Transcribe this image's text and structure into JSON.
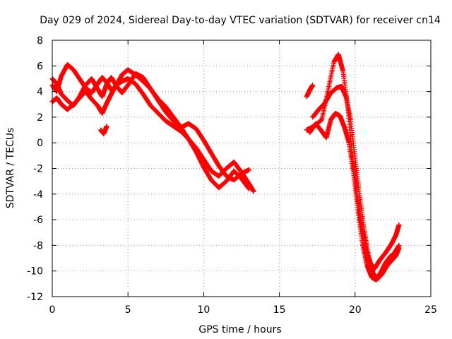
{
  "chart_data": {
    "type": "scatter",
    "title": "Day 029 of 2024, Sidereal Day-to-day VTEC variation (SDTVAR) for receiver cn14",
    "xlabel": "GPS time / hours",
    "ylabel": "SDTVAR / TECUs",
    "xlim": [
      0,
      25
    ],
    "ylim": [
      -12,
      8
    ],
    "xticks": [
      0,
      5,
      10,
      15,
      20,
      25
    ],
    "yticks": [
      -12,
      -10,
      -8,
      -6,
      -4,
      -2,
      0,
      2,
      4,
      6,
      8
    ],
    "grid": true,
    "marker": "+",
    "series": [
      {
        "name": "SDTVAR",
        "color": "#ff0000",
        "tracks": [
          {
            "x": [
              0,
              0.3,
              0.6,
              1.0,
              1.4,
              1.8,
              2.2,
              2.6,
              3.0,
              3.3,
              3.6,
              3.9,
              4.2,
              4.6,
              5.0,
              5.5,
              6.0,
              6.5,
              7.0,
              7.5,
              8.0,
              8.5,
              9.0,
              9.5,
              10.0,
              10.5,
              11.0,
              11.5,
              12.0,
              12.5,
              13.0,
              13.3
            ],
            "y": [
              3.2,
              3.5,
              3.0,
              2.6,
              3.0,
              3.5,
              4.0,
              3.4,
              2.9,
              2.3,
              3.1,
              3.8,
              4.5,
              4.8,
              5.0,
              4.6,
              3.8,
              2.9,
              2.3,
              1.7,
              1.3,
              0.9,
              0.3,
              -0.4,
              -1.3,
              -2.2,
              -2.6,
              -2.0,
              -1.5,
              -2.3,
              -3.2,
              -3.8
            ]
          },
          {
            "x": [
              0,
              0.3,
              0.6,
              1.0,
              1.4,
              1.8,
              2.2,
              2.6,
              3.0,
              3.3,
              3.6,
              3.9,
              4.2,
              4.6,
              5.0,
              5.5,
              6.0,
              6.5,
              7.0,
              7.5,
              8.0,
              8.5,
              9.0,
              9.5,
              10.0,
              10.5,
              11.0,
              11.5,
              12.0,
              12.5,
              13.0
            ],
            "y": [
              4.5,
              4.0,
              5.2,
              6.1,
              5.7,
              5.0,
              4.3,
              3.9,
              4.6,
              5.1,
              4.7,
              4.1,
              4.4,
              5.3,
              5.7,
              5.3,
              4.8,
              4.2,
              3.3,
              2.4,
              1.7,
              1.2,
              1.5,
              1.1,
              0.2,
              -0.8,
              -1.8,
              -2.6,
              -2.9,
              -2.4,
              -2.1
            ]
          },
          {
            "x": [
              0,
              0.3,
              0.6,
              1.0,
              1.4,
              1.8,
              2.2,
              2.6,
              3.0,
              3.3,
              3.6,
              3.9,
              4.2,
              4.6,
              5.0,
              5.5,
              6.0,
              6.5,
              7.0,
              7.5,
              8.0,
              8.5,
              9.0,
              9.5,
              10.0,
              10.5,
              11.0,
              11.5,
              12.0,
              12.5,
              13.0
            ],
            "y": [
              5.0,
              4.6,
              3.8,
              3.3,
              2.9,
              3.6,
              4.5,
              5.0,
              4.2,
              3.6,
              4.6,
              5.1,
              4.5,
              3.9,
              4.5,
              5.4,
              5.1,
              4.2,
              3.4,
              2.8,
              2.0,
              1.2,
              0.3,
              -0.7,
              -1.9,
              -2.9,
              -3.5,
              -3.0,
              -2.2,
              -2.8,
              -3.6
            ]
          },
          {
            "x": [
              3.2,
              3.4,
              3.6
            ],
            "y": [
              1.0,
              0.7,
              1.3
            ]
          },
          {
            "x": [
              16.8,
              17.0,
              17.2
            ],
            "y": [
              3.6,
              4.1,
              4.5
            ]
          },
          {
            "x": [
              16.8,
              17.3,
              17.8,
              18.2,
              18.6,
              18.9,
              19.2,
              19.5,
              19.8,
              20.1,
              20.4,
              20.7,
              21.0,
              21.3,
              21.6,
              22.0,
              22.4,
              22.7,
              22.9
            ],
            "y": [
              1.0,
              1.3,
              1.8,
              4.0,
              6.3,
              6.9,
              5.6,
              3.0,
              -1.0,
              -3.8,
              -6.3,
              -8.3,
              -9.4,
              -9.8,
              -9.2,
              -8.6,
              -7.9,
              -7.2,
              -6.4
            ]
          },
          {
            "x": [
              17.0,
              17.4,
              17.8,
              18.1,
              18.4,
              18.7,
              19.0,
              19.3,
              19.6,
              19.9,
              20.2,
              20.5,
              20.8,
              21.1,
              21.4,
              21.7,
              22.0,
              22.3,
              22.6,
              22.9
            ],
            "y": [
              0.8,
              1.5,
              0.9,
              0.4,
              1.8,
              2.3,
              2.1,
              1.2,
              0.0,
              -2.4,
              -5.4,
              -7.9,
              -9.6,
              -10.5,
              -10.7,
              -10.1,
              -9.4,
              -8.9,
              -8.6,
              -8.0
            ]
          },
          {
            "x": [
              17.2,
              17.6,
              18.0,
              18.4,
              18.8,
              19.1,
              19.4,
              19.7,
              20.0,
              20.3,
              20.6,
              20.9,
              21.2,
              21.5,
              21.8,
              22.1,
              22.4,
              22.7,
              22.9
            ],
            "y": [
              2.0,
              2.6,
              3.1,
              3.9,
              4.3,
              4.4,
              3.6,
              1.8,
              -1.2,
              -4.1,
              -6.8,
              -8.9,
              -10.2,
              -10.6,
              -10.2,
              -9.6,
              -9.2,
              -8.8,
              -8.2
            ]
          }
        ]
      }
    ]
  }
}
